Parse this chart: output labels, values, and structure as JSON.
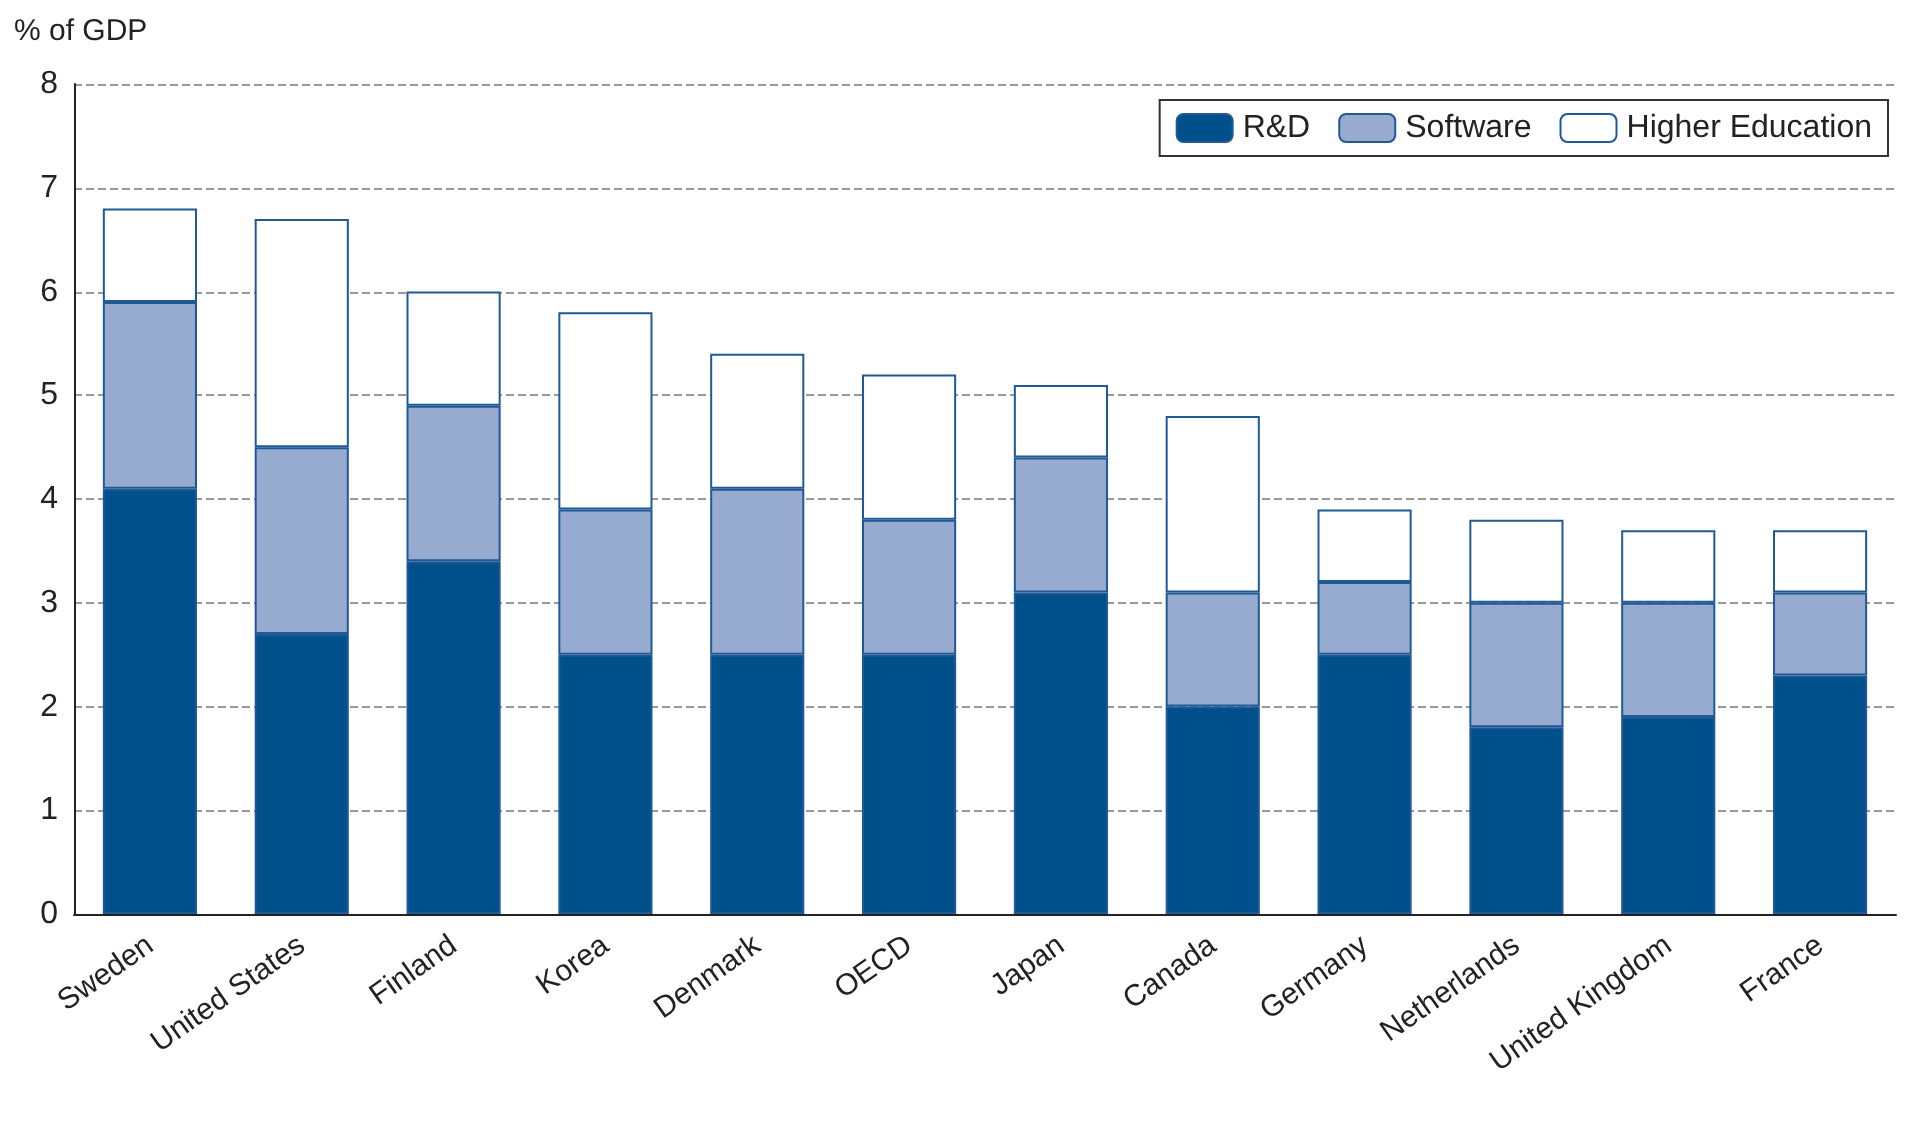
{
  "chart_data": {
    "type": "bar",
    "stacked": true,
    "ylabel": "% of GDP",
    "categories": [
      "Sweden",
      "United States",
      "Finland",
      "Korea",
      "Denmark",
      "OECD",
      "Japan",
      "Canada",
      "Germany",
      "Netherlands",
      "United Kingdom",
      "France"
    ],
    "series": [
      {
        "name": "R&D",
        "color": "#00508c",
        "values": [
          4.1,
          2.7,
          3.4,
          2.5,
          2.5,
          2.5,
          3.1,
          2.0,
          2.5,
          1.8,
          1.9,
          2.3
        ]
      },
      {
        "name": "Software",
        "color": "#97abd1",
        "values": [
          1.8,
          1.8,
          1.5,
          1.4,
          1.6,
          1.3,
          1.3,
          1.1,
          0.7,
          1.2,
          1.1,
          0.8
        ]
      },
      {
        "name": "Higher Education",
        "color": "#ffffff",
        "values": [
          0.9,
          2.2,
          1.1,
          1.9,
          1.3,
          1.4,
          0.7,
          1.7,
          0.7,
          0.8,
          0.7,
          0.6
        ]
      }
    ],
    "ylim": [
      0,
      8
    ],
    "yticks": [
      0,
      1,
      2,
      3,
      4,
      5,
      6,
      7,
      8
    ],
    "grid": "y",
    "legend": "top right"
  }
}
